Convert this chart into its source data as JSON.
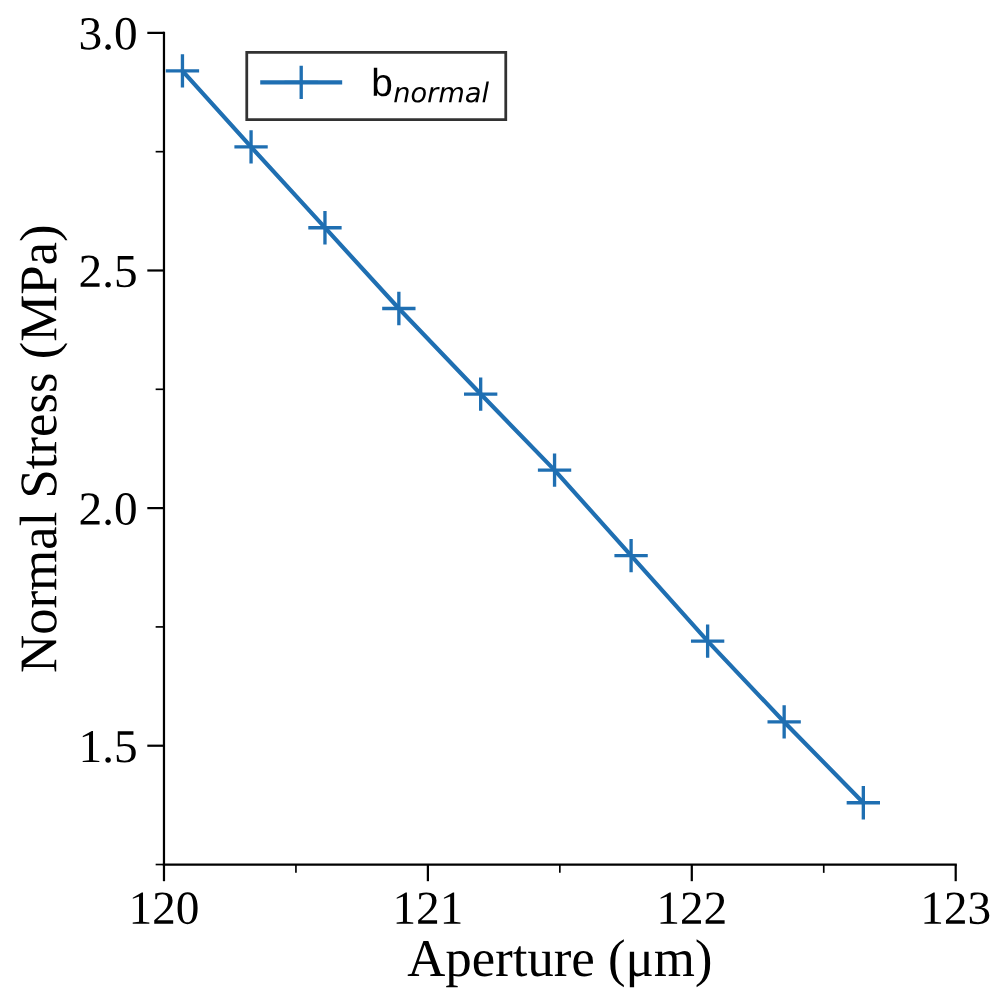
{
  "chart_data": {
    "type": "line",
    "xlabel": "Aperture (μm)",
    "ylabel": "Normal Stress (MPa)",
    "x": [
      120.07,
      120.33,
      120.61,
      120.89,
      121.2,
      121.48,
      121.77,
      122.06,
      122.35,
      122.65
    ],
    "series": [
      {
        "name": "b$_{normal}$",
        "color": "#1f6fb2",
        "values": [
          2.92,
          2.76,
          2.59,
          2.42,
          2.24,
          2.08,
          1.9,
          1.72,
          1.55,
          1.38
        ]
      }
    ],
    "xlim": [
      120,
      123
    ],
    "xticks": [
      120,
      121,
      122,
      123
    ],
    "ylim": [
      1.25,
      3.0
    ],
    "yticks": [
      {
        "value": 1.5,
        "label": "1.5"
      },
      {
        "value": 2.0,
        "label": "2.0"
      },
      {
        "value": 2.5,
        "label": "2.5"
      },
      {
        "value": 3.0,
        "label": "3.0"
      }
    ],
    "marker": "cross",
    "line_style": "solid",
    "legend": "top left",
    "grid": false
  }
}
